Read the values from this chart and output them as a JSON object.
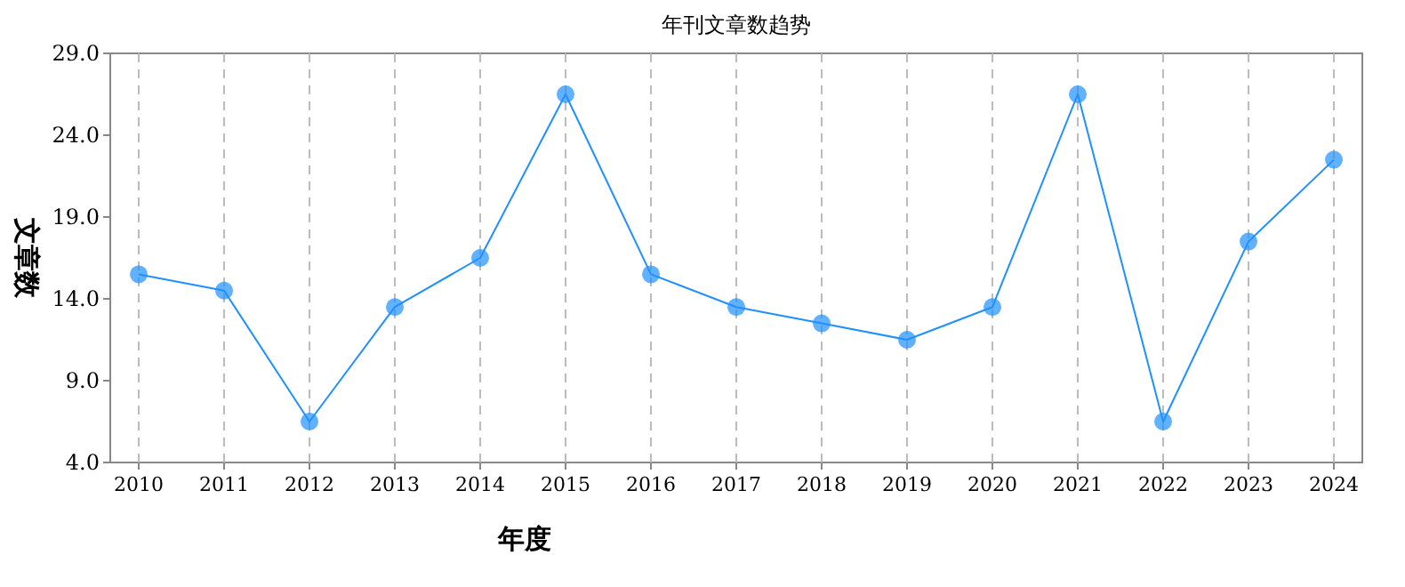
{
  "chart_data": {
    "type": "line",
    "title": "年刊文章数趋势",
    "xlabel": "年度",
    "ylabel": "文章数",
    "categories": [
      "2010",
      "2011",
      "2012",
      "2013",
      "2014",
      "2015",
      "2016",
      "2017",
      "2018",
      "2019",
      "2020",
      "2021",
      "2022",
      "2023",
      "2024"
    ],
    "series": [
      {
        "color": "#1e90ff",
        "values": [
          15.5,
          14.5,
          6.5,
          13.5,
          16.5,
          26.5,
          15.5,
          13.5,
          12.5,
          11.5,
          13.5,
          26.5,
          6.5,
          17.5,
          22.5
        ]
      }
    ],
    "ylim": [
      4,
      29
    ],
    "yticks": [
      {
        "value": 4,
        "label": "4.0"
      },
      {
        "value": 9,
        "label": "9.0"
      },
      {
        "value": 14,
        "label": "14.0"
      },
      {
        "value": 19,
        "label": "19.0"
      },
      {
        "value": 24,
        "label": "24.0"
      },
      {
        "value": 29,
        "label": "29.0"
      }
    ],
    "grid": "x",
    "marker": "circle",
    "line_style": "solid"
  }
}
